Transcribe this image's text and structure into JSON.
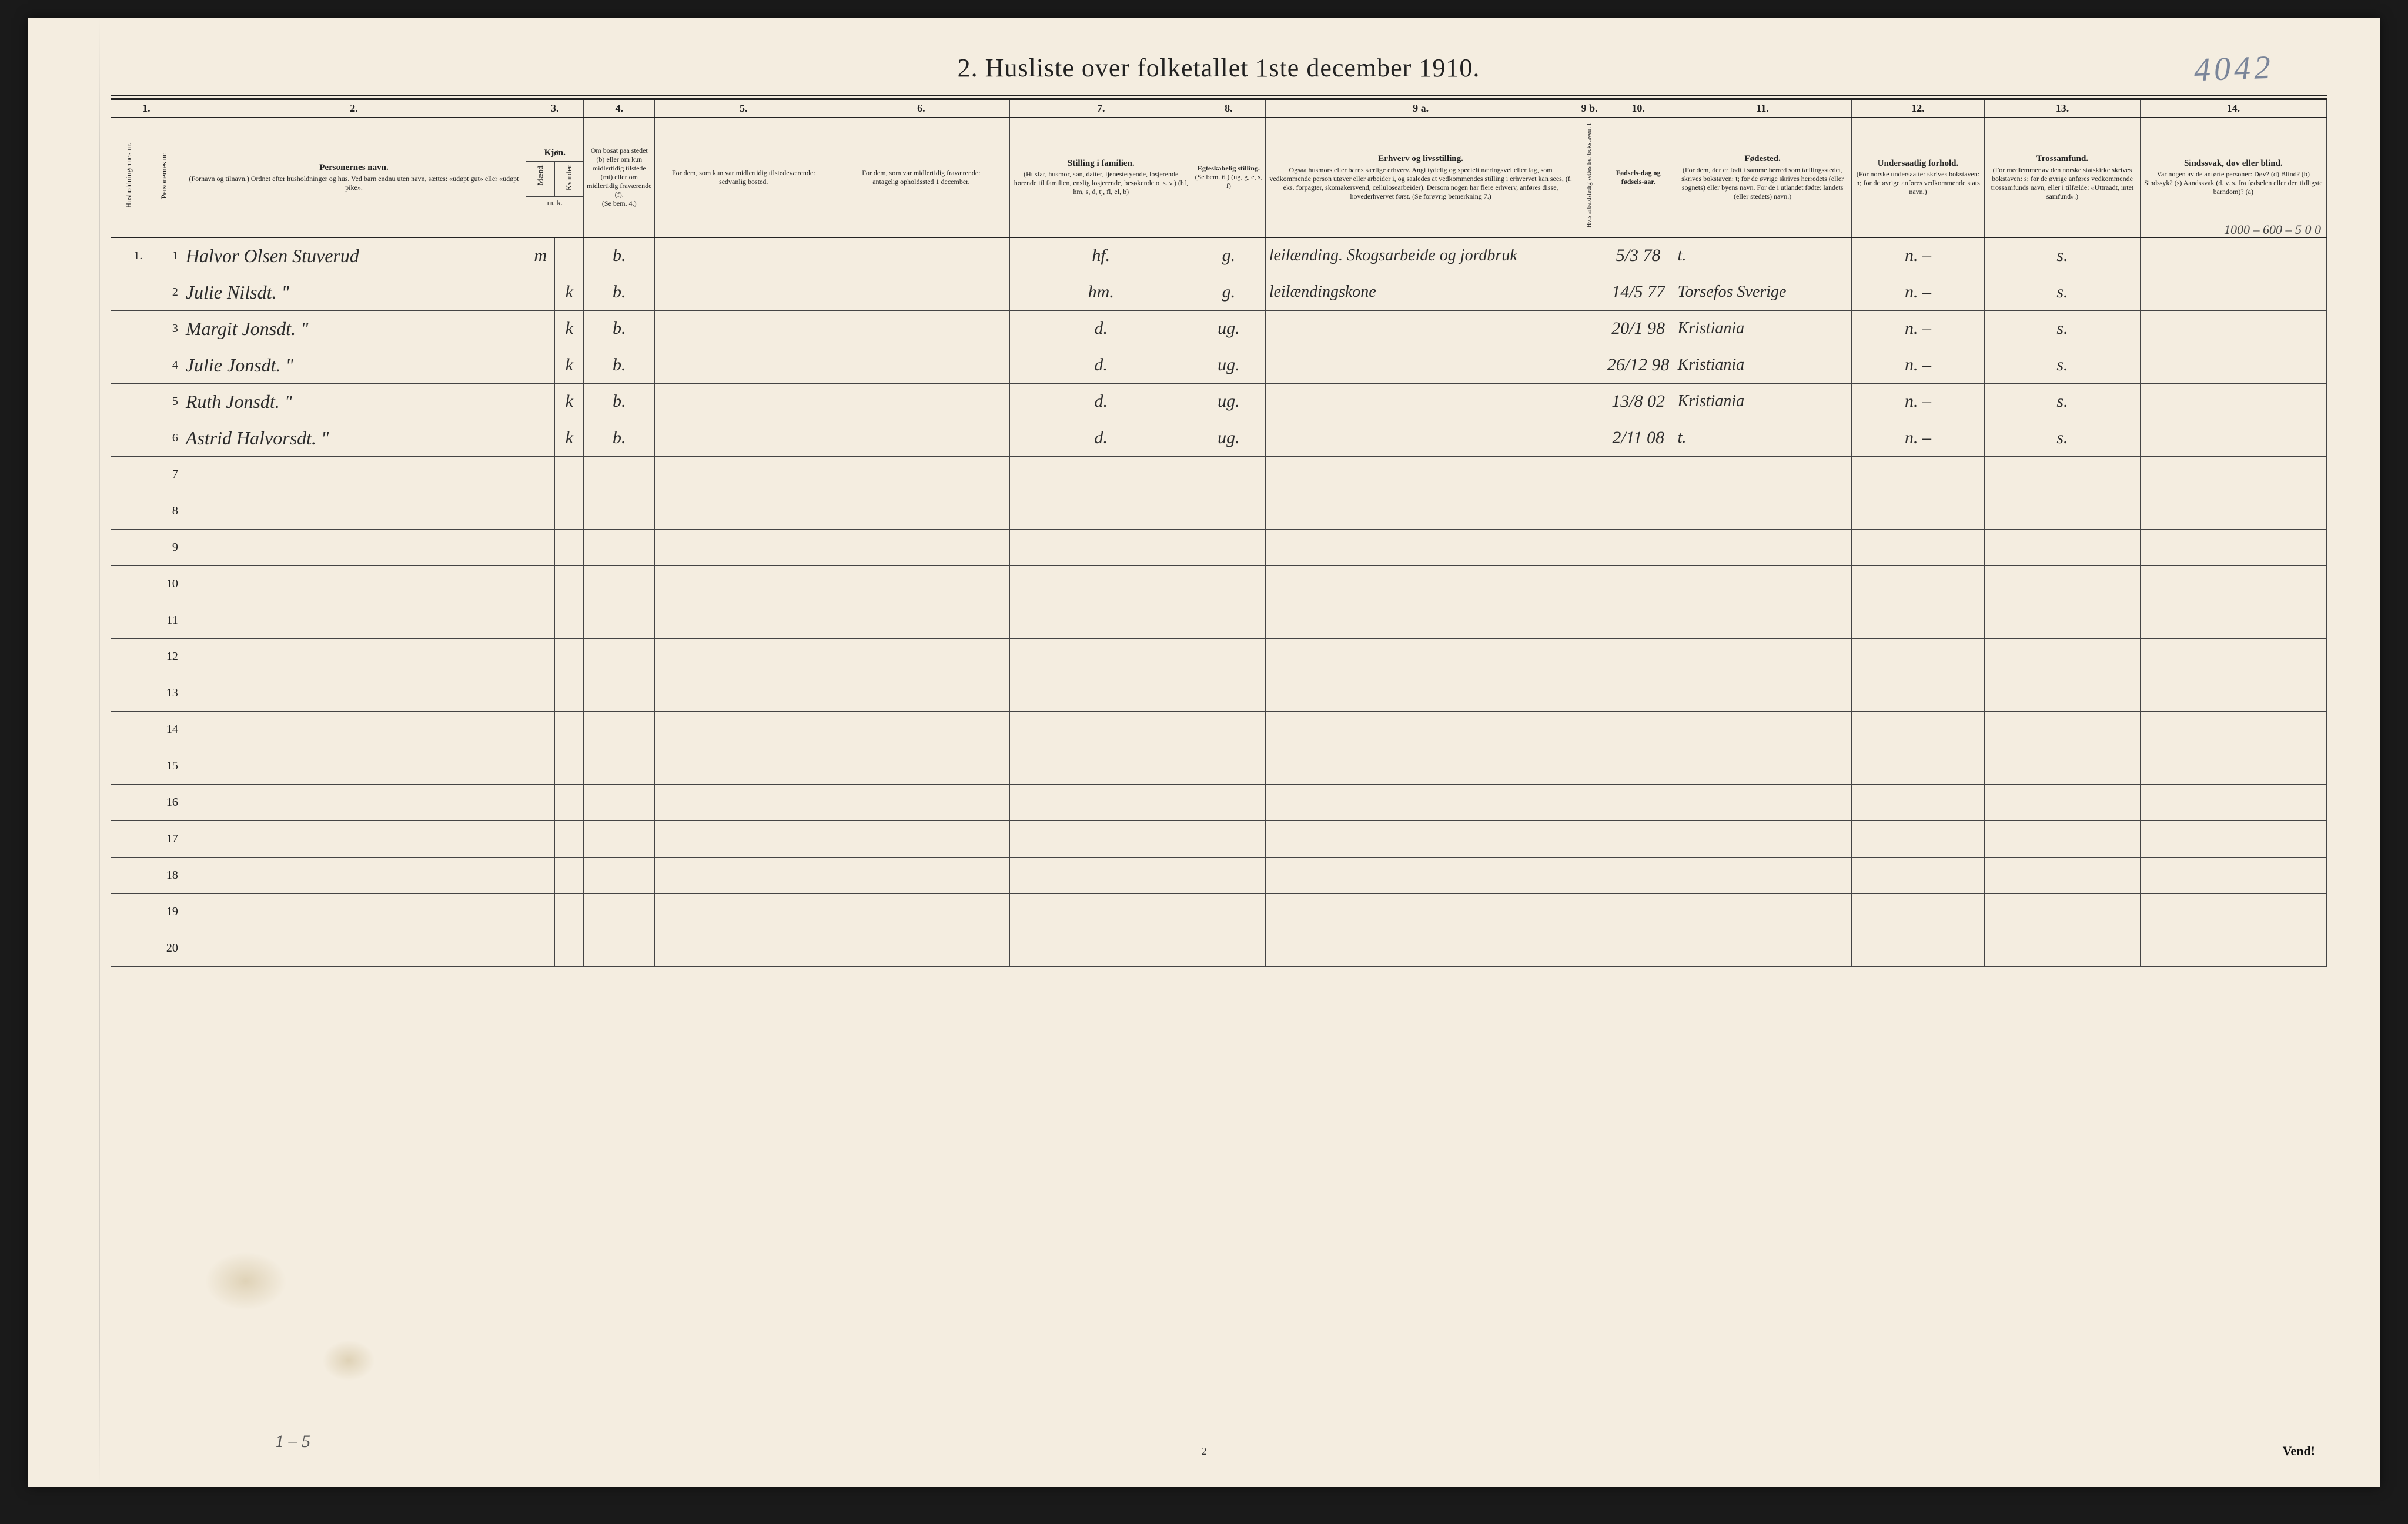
{
  "title": "2.  Husliste over folketallet 1ste december 1910.",
  "page_annotation": "4042",
  "margin_note": "1000 – 600 – 5    0    0",
  "footer_tally": "1 – 5",
  "footer_page": "2",
  "vend": "Vend!",
  "colnums": [
    "1.",
    "2.",
    "3.",
    "4.",
    "5.",
    "6.",
    "7.",
    "8.",
    "9 a.",
    "9 b.",
    "10.",
    "11.",
    "12.",
    "13.",
    "14."
  ],
  "headers": {
    "hh": "Husholdningernes nr.",
    "pn": "Personernes nr.",
    "name_main": "Personernes navn.",
    "name_sub": "(Fornavn og tilnavn.)\nOrdnet efter husholdninger og hus.\nVed barn endnu uten navn, sættes: «udøpt gut» eller «udøpt pike».",
    "sex_main": "Kjøn.",
    "sex_m": "Mænd.",
    "sex_k": "Kvinder.",
    "sex_mk": "m.   k.",
    "res_main": "Om bosat paa stedet (b) eller om kun midlertidig tilstede (mt) eller om midlertidig fraværende (f).",
    "res_sub": "(Se bem. 4.)",
    "away_main": "For dem, som kun var midlertidig tilstedeværende:",
    "away_sub": "sedvanlig bosted.",
    "temp_main": "For dem, som var midlertidig fraværende:",
    "temp_sub": "antagelig opholdssted 1 december.",
    "famrel_main": "Stilling i familien.",
    "famrel_sub": "(Husfar, husmor, søn, datter, tjenestetyende, losjerende hørende til familien, enslig losjerende, besøkende o. s. v.)\n(hf, hm, s, d, tj, fl, el, b)",
    "marital_main": "Egteskabelig stilling.",
    "marital_sub": "(Se bem. 6.) (ug, g, e, s, f)",
    "occ_main": "Erhverv og livsstilling.",
    "occ_sub": "Ogsaa husmors eller barns særlige erhverv. Angi tydelig og specielt næringsvei eller fag, som vedkommende person utøver eller arbeider i, og saaledes at vedkommendes stilling i erhvervet kan sees, (f. eks. forpagter, skomakersvend, cellulosearbeider). Dersom nogen har flere erhverv, anføres disse, hovederhvervet først.\n(Se forøvrig bemerkning 7.)",
    "col9b": "Hvis arbeidsledig settes her bokstaven: l",
    "bdate_main": "Fødsels-dag og fødsels-aar.",
    "bplace_main": "Fødested.",
    "bplace_sub": "(For dem, der er født i samme herred som tællingsstedet, skrives bokstaven: t; for de øvrige skrives herredets (eller sognets) eller byens navn. For de i utlandet fødte: landets (eller stedets) navn.)",
    "nat_main": "Undersaatlig forhold.",
    "nat_sub": "(For norske undersaatter skrives bokstaven: n; for de øvrige anføres vedkommende stats navn.)",
    "rel_main": "Trossamfund.",
    "rel_sub": "(For medlemmer av den norske statskirke skrives bokstaven: s; for de øvrige anføres vedkommende trossamfunds navn, eller i tilfælde: «Uttraadt, intet samfund».)",
    "dis_main": "Sindssvak, døv eller blind.",
    "dis_sub": "Var nogen av de anførte personer:\nDøv? (d)\nBlind? (b)\nSindssyk? (s)\nAandssvak (d. v. s. fra fødselen eller den tidligste barndom)? (a)"
  },
  "rows": [
    {
      "hh": "1.",
      "pn": "1",
      "name": "Halvor Olsen Stuverud",
      "m": "m",
      "k": "",
      "res": "b.",
      "away": "",
      "temp": "",
      "famrel": "hf.",
      "marital": "g.",
      "occ": "leilænding. Skogsarbeide og jordbruk",
      "c9b": "",
      "bdate": "5/3 78",
      "bplace": "t.",
      "nat": "n. –",
      "rel": "s.",
      "dis": ""
    },
    {
      "hh": "",
      "pn": "2",
      "name": "Julie Nilsdt.      \"",
      "m": "",
      "k": "k",
      "res": "b.",
      "away": "",
      "temp": "",
      "famrel": "hm.",
      "marital": "g.",
      "occ": "leilændingskone",
      "c9b": "",
      "bdate": "14/5 77",
      "bplace": "Torsefos Sverige",
      "nat": "n. –",
      "rel": "s.",
      "dis": ""
    },
    {
      "hh": "",
      "pn": "3",
      "name": "Margit Jonsdt.   \"",
      "m": "",
      "k": "k",
      "res": "b.",
      "away": "",
      "temp": "",
      "famrel": "d.",
      "marital": "ug.",
      "occ": "",
      "c9b": "",
      "bdate": "20/1 98",
      "bplace": "Kristiania",
      "nat": "n. –",
      "rel": "s.",
      "dis": ""
    },
    {
      "hh": "",
      "pn": "4",
      "name": "Julie Jonsdt.     \"",
      "m": "",
      "k": "k",
      "res": "b.",
      "away": "",
      "temp": "",
      "famrel": "d.",
      "marital": "ug.",
      "occ": "",
      "c9b": "",
      "bdate": "26/12 98",
      "bplace": "Kristiania",
      "nat": "n. –",
      "rel": "s.",
      "dis": ""
    },
    {
      "hh": "",
      "pn": "5",
      "name": "Ruth Jonsdt.     \"",
      "m": "",
      "k": "k",
      "res": "b.",
      "away": "",
      "temp": "",
      "famrel": "d.",
      "marital": "ug.",
      "occ": "",
      "c9b": "",
      "bdate": "13/8 02",
      "bplace": "Kristiania",
      "nat": "n. –",
      "rel": "s.",
      "dis": ""
    },
    {
      "hh": "",
      "pn": "6",
      "name": "Astrid Halvorsdt. \"",
      "m": "",
      "k": "k",
      "res": "b.",
      "away": "",
      "temp": "",
      "famrel": "d.",
      "marital": "ug.",
      "occ": "",
      "c9b": "",
      "bdate": "2/11 08",
      "bplace": "t.",
      "nat": "n. –",
      "rel": "s.",
      "dis": ""
    }
  ],
  "empty_rows": [
    "7",
    "8",
    "9",
    "10",
    "11",
    "12",
    "13",
    "14",
    "15",
    "16",
    "17",
    "18",
    "19",
    "20"
  ]
}
